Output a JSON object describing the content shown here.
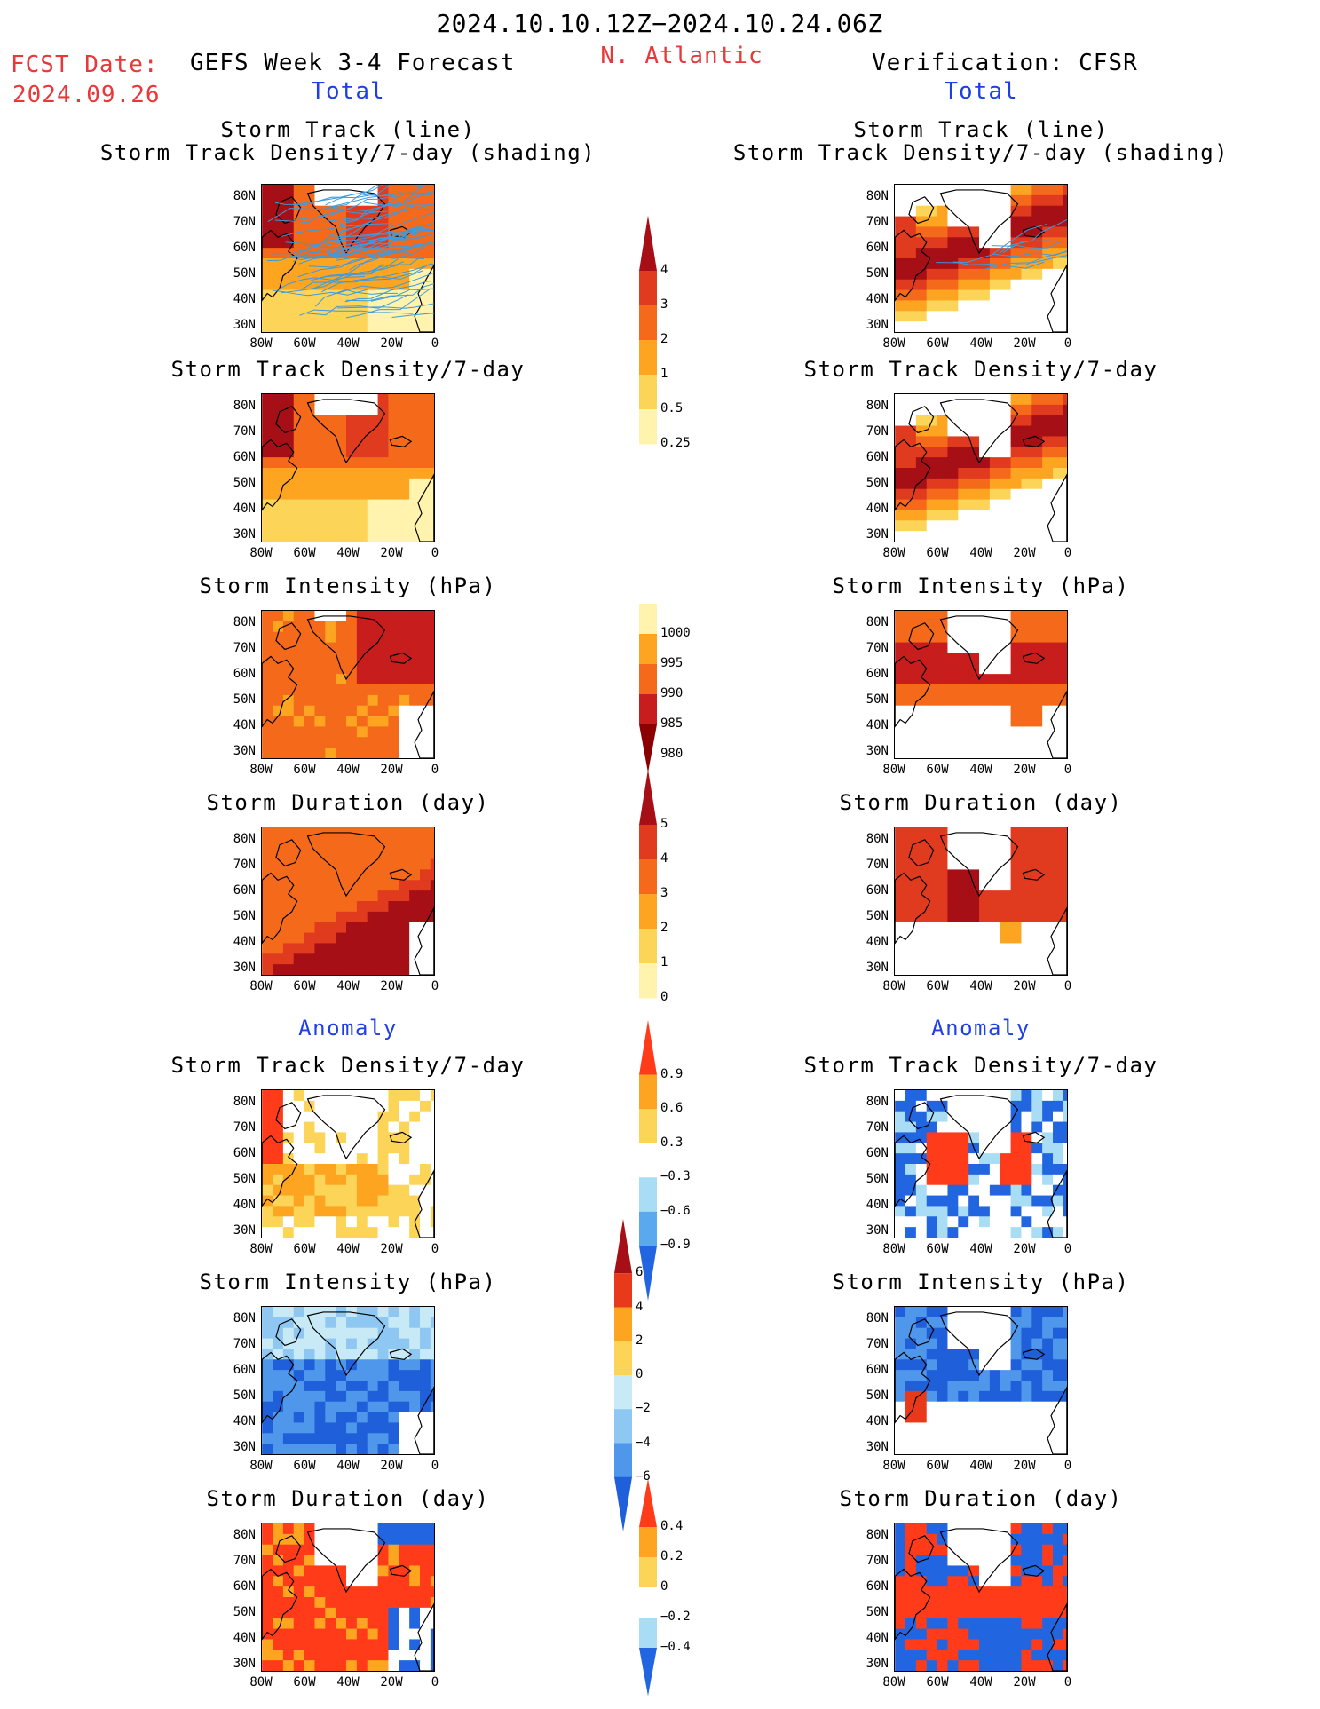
{
  "header": {
    "date_range": "2024.10.10.12Z−2024.10.24.06Z",
    "fcst_label": "FCST Date:",
    "fcst_date": "2024.09.26",
    "model": "GEFS Week 3-4 Forecast",
    "region": "N. Atlantic",
    "verification": "Verification: CFSR",
    "total_left": "Total",
    "total_right": "Total",
    "anomaly_left": "Anomaly",
    "anomaly_right": "Anomaly"
  },
  "panel_titles": {
    "track_line": "Storm Track (line)",
    "track_density_shading": "Storm Track Density/7-day (shading)",
    "track_density": "Storm Track Density/7-day",
    "intensity": "Storm Intensity (hPa)",
    "duration": "Storm Duration (day)"
  },
  "axes": {
    "lat_labels": [
      "80N",
      "70N",
      "60N",
      "50N",
      "40N",
      "30N"
    ],
    "lon_labels": [
      "80W",
      "60W",
      "40W",
      "20W",
      "0"
    ]
  },
  "colorbars": {
    "density_total": {
      "labels": [
        "4",
        "3",
        "2",
        "1",
        "0.5",
        "0.25"
      ],
      "colors": [
        "#a50f15",
        "#e03a1f",
        "#f46a1a",
        "#fda520",
        "#fcd457",
        "#fff3ad"
      ]
    },
    "intensity_total": {
      "labels": [
        "1000",
        "995",
        "990",
        "985",
        "980"
      ],
      "colors": [
        "#fff3ad",
        "#fda520",
        "#f46a1a",
        "#c81d1d",
        "#8b0000"
      ]
    },
    "duration_total": {
      "labels": [
        "5",
        "4",
        "3",
        "2",
        "1",
        "0"
      ],
      "colors": [
        "#a50f15",
        "#e03a1f",
        "#f46a1a",
        "#fda520",
        "#fcd457",
        "#fff3ad"
      ]
    },
    "density_anom": {
      "labels": [
        "0.9",
        "0.6",
        "0.3",
        "−0.3",
        "−0.6",
        "−0.9"
      ],
      "colors": [
        "#ff3b1a",
        "#fda520",
        "#fcd457",
        "#ffffff",
        "#a8ddf5",
        "#5aa9ee",
        "#2166e0"
      ]
    },
    "intensity_anom": {
      "labels": [
        "6",
        "4",
        "2",
        "0",
        "−2",
        "−4",
        "−6"
      ],
      "colors": [
        "#a50f15",
        "#e8391a",
        "#fda520",
        "#fcd457",
        "#c8eaf7",
        "#8ec8f2",
        "#4e97ea",
        "#1f5fd9"
      ]
    },
    "duration_anom": {
      "labels": [
        "0.4",
        "0.2",
        "0",
        "−0.2",
        "−0.4"
      ],
      "colors": [
        "#ff3b1a",
        "#fda520",
        "#fcd457",
        "#ffffff",
        "#a8ddf5",
        "#2166e0"
      ]
    }
  },
  "palette": {
    "dark_red": "#a50f15",
    "red": "#e03a1f",
    "orange_red": "#f46a1a",
    "orange": "#fda520",
    "yellow": "#fcd457",
    "pale_yellow": "#fff3ad",
    "track_line": "#3b9be0",
    "blue": "#2166e0",
    "light_blue": "#a8ddf5"
  }
}
